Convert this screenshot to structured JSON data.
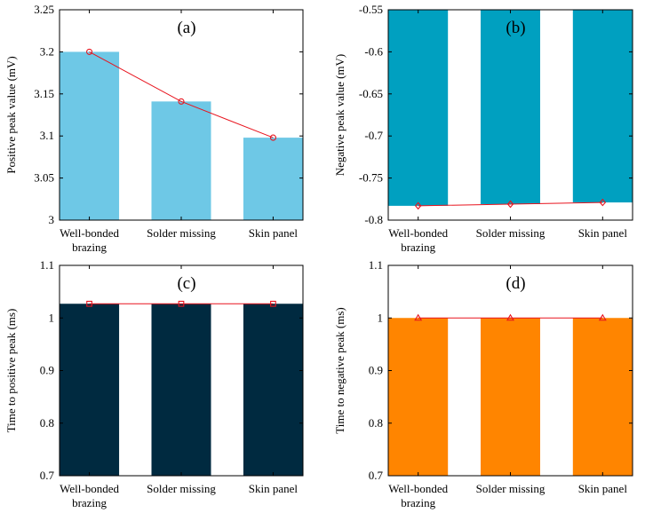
{
  "chart_data": [
    {
      "type": "bar",
      "panel_label": "(a)",
      "categories": [
        "Well-bonded\nbrazing",
        "Solder missing",
        "Skin panel"
      ],
      "values": [
        3.2,
        3.141,
        3.098
      ],
      "line_values": [
        3.2,
        3.141,
        3.098
      ],
      "line_marker": "circle",
      "bar_color": "#6ec8e6",
      "line_color": "#e8141e",
      "ylabel": "Positive peak value (mV)",
      "ylim": [
        3,
        3.25
      ],
      "yticks": [
        3,
        3.05,
        3.1,
        3.15,
        3.2,
        3.25
      ],
      "ytick_labels": [
        "3",
        "3.05",
        "3.1",
        "3.15",
        "3.2",
        "3.25"
      ],
      "bar_base": 3
    },
    {
      "type": "bar",
      "panel_label": "(b)",
      "categories": [
        "Well-bonded\nbrazing",
        "Solder missing",
        "Skin panel"
      ],
      "values": [
        -0.783,
        -0.781,
        -0.779
      ],
      "line_values": [
        -0.783,
        -0.781,
        -0.779
      ],
      "line_marker": "diamond",
      "bar_color": "#00a0c0",
      "line_color": "#e8141e",
      "ylabel": "Negative peak value (mV)",
      "ylim": [
        -0.8,
        -0.55
      ],
      "yticks": [
        -0.8,
        -0.75,
        -0.7,
        -0.65,
        -0.6,
        -0.55
      ],
      "ytick_labels": [
        "-0.8",
        "-0.75",
        "-0.7",
        "-0.65",
        "-0.6",
        "-0.55"
      ],
      "bar_base": -0.55
    },
    {
      "type": "bar",
      "panel_label": "(c)",
      "categories": [
        "Well-bonded\nbrazing",
        "Solder missing",
        "Skin panel"
      ],
      "values": [
        1.027,
        1.027,
        1.027
      ],
      "line_values": [
        1.027,
        1.027,
        1.027
      ],
      "line_marker": "square",
      "bar_color": "#002a40",
      "line_color": "#e8141e",
      "ylabel": "Time to positive  peak (ms)",
      "ylim": [
        0.7,
        1.1
      ],
      "yticks": [
        0.7,
        0.8,
        0.9,
        1,
        1.1
      ],
      "ytick_labels": [
        "0.7",
        "0.8",
        "0.9",
        "1",
        "1.1"
      ],
      "bar_base": 0.7
    },
    {
      "type": "bar",
      "panel_label": "(d)",
      "categories": [
        "Well-bonded\nbrazing",
        "Solder missing",
        "Skin panel"
      ],
      "values": [
        1.0,
        1.0,
        1.0
      ],
      "line_values": [
        1.0,
        1.0,
        1.0
      ],
      "line_marker": "triangle",
      "bar_color": "#ff8500",
      "line_color": "#e8141e",
      "ylabel": "Time to negative peak (ms)",
      "ylim": [
        0.7,
        1.1
      ],
      "yticks": [
        0.7,
        0.8,
        0.9,
        1,
        1.1
      ],
      "ytick_labels": [
        "0.7",
        "0.8",
        "0.9",
        "1",
        "1.1"
      ],
      "bar_base": 0.7
    }
  ]
}
